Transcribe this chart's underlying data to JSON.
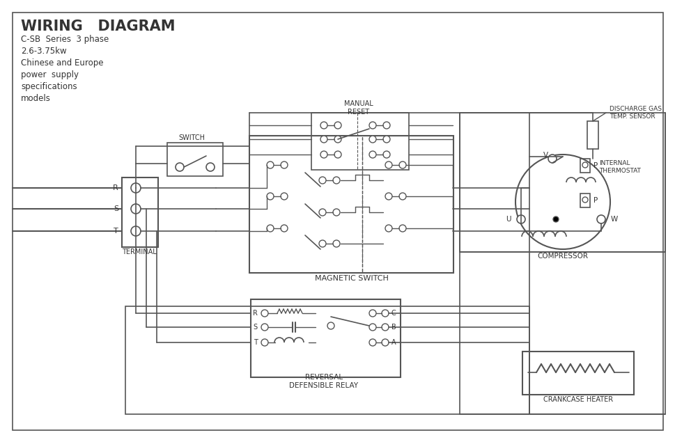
{
  "title": "WIRING   DIAGRAM",
  "subtitle_lines": [
    "C-SB  Series  3 phase",
    "2.6-3.75kw",
    "Chinese and Europe",
    "power  supply",
    "specifications",
    "models"
  ],
  "bg_color": "#ffffff",
  "line_color": "#555555",
  "text_color": "#333333",
  "font_sizes": {
    "title": 15,
    "subtitle": 8.5,
    "label_small": 6.5,
    "label_medium": 7.5
  },
  "labels": {
    "switch": "SWITCH",
    "manual_reset": "MANUAL\nRESET",
    "magnetic_switch": "MAGNETIC SWITCH",
    "terminal": "TERMINAL",
    "compressor": "COMPRESSOR",
    "discharge_gas": "DISCHARGE GAS\nTEMP. SENSOR",
    "internal_thermo": "INTERNAL\nTHERMOSTAT",
    "reversal_relay": "REVERSAL\nDEFENSIBLE RELAY",
    "crankcase_heater": "CRANKCASE HEATER",
    "R": "R",
    "S": "S",
    "T": "T",
    "U": "U",
    "V": "V",
    "W": "W",
    "P": "P",
    "relay_R": "R",
    "relay_S": "S",
    "relay_T": "T",
    "relay_A": "A",
    "relay_B": "B",
    "relay_C": "C"
  }
}
